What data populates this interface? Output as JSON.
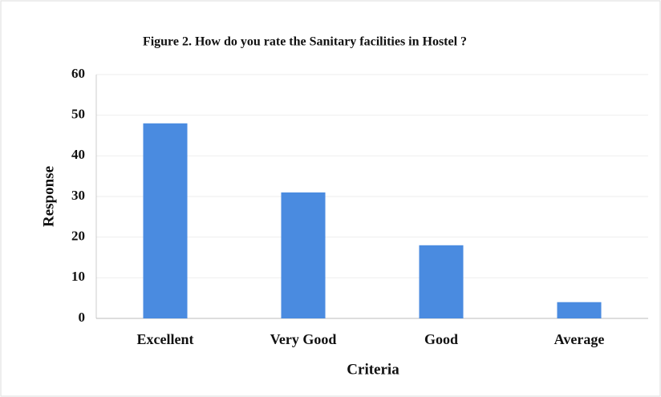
{
  "chart_data": {
    "type": "bar",
    "title": "Figure 2. How do you rate the Sanitary facilities in Hostel ?",
    "x_label": "Criteria",
    "y_label": "Response",
    "categories": [
      "Excellent",
      "Very Good",
      "Good",
      "Average"
    ],
    "values": [
      48,
      31,
      18,
      4
    ],
    "color": "#4a8be0",
    "ylim": [
      0,
      60
    ],
    "yticks": [
      0,
      10,
      20,
      30,
      40,
      50,
      60
    ],
    "grid": true
  }
}
